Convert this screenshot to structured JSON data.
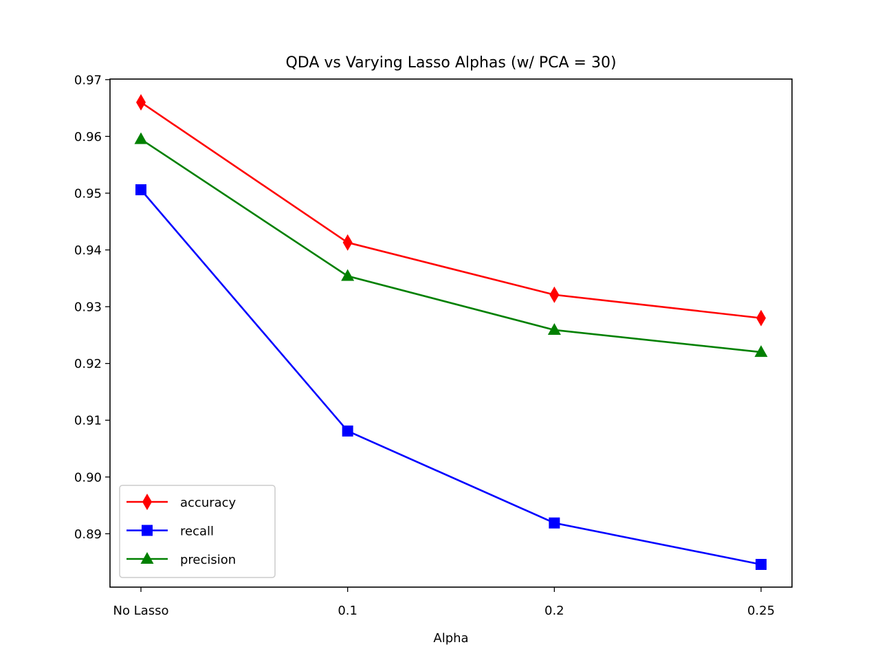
{
  "chart_data": {
    "type": "line",
    "title": "QDA vs Varying Lasso Alphas (w/ PCA = 30)",
    "xlabel": "Alpha",
    "ylabel": "",
    "categories": [
      "No Lasso",
      "0.1",
      "0.2",
      "0.25"
    ],
    "ylim": [
      0.8806,
      0.9701
    ],
    "yticks": [
      "0.89",
      "0.90",
      "0.91",
      "0.92",
      "0.93",
      "0.94",
      "0.95",
      "0.96",
      "0.97"
    ],
    "ytick_values": [
      0.89,
      0.9,
      0.91,
      0.92,
      0.93,
      0.94,
      0.95,
      0.96,
      0.97
    ],
    "grid": false,
    "legend_position": "lower-left",
    "series": [
      {
        "name": "accuracy",
        "color": "#ff0000",
        "marker": "thin-diamond",
        "values": [
          0.966,
          0.9413,
          0.9321,
          0.928
        ]
      },
      {
        "name": "recall",
        "color": "#0000ff",
        "marker": "square",
        "values": [
          0.9506,
          0.9081,
          0.8919,
          0.8846
        ]
      },
      {
        "name": "precision",
        "color": "#008000",
        "marker": "triangle-up",
        "values": [
          0.9595,
          0.9354,
          0.9259,
          0.922
        ]
      }
    ]
  }
}
